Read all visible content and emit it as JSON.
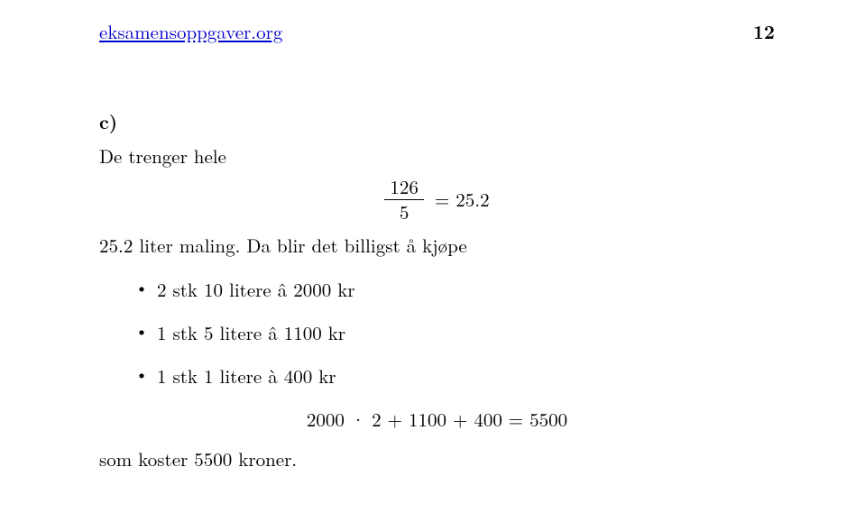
{
  "header": {
    "site": "eksamensoppgaver.org",
    "site_color": "#0000cc",
    "page_number": "12"
  },
  "section": {
    "label": "c)"
  },
  "intro": "De trenger hele",
  "fraction": {
    "numerator": "126",
    "denominator": "5",
    "equals": "= 25.2"
  },
  "after_fraction": "25.2 liter maling. Da blir det billigst å kjøpe",
  "items": [
    "2 stk 10 litere â 2000 kr",
    "1 stk 5 litere â 1100 kr",
    "1 stk 1 litere à 400 kr"
  ],
  "calculation": "2000 · 2 + 1100 + 400 = 5500",
  "conclusion": "som koster 5500 kroner."
}
